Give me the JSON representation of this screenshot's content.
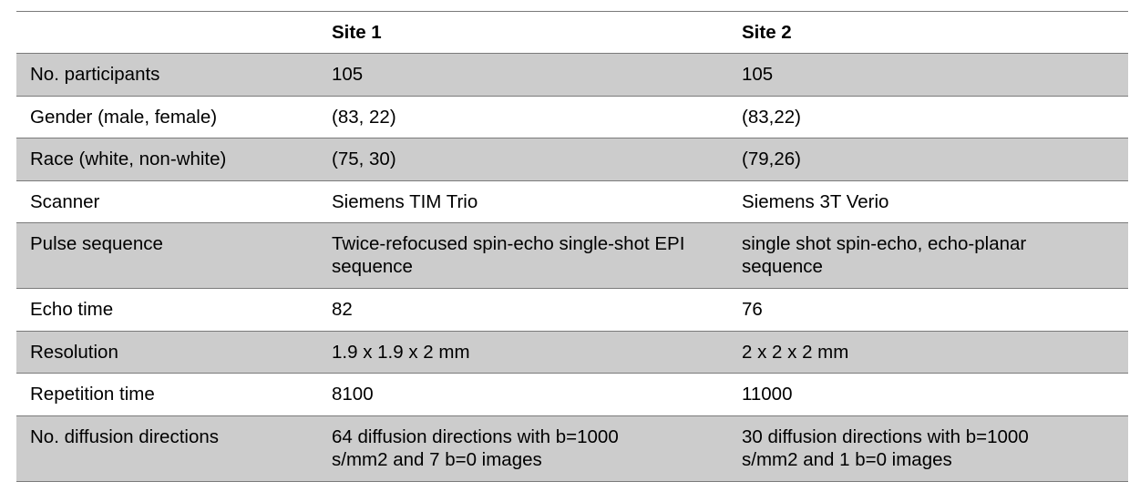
{
  "header": [
    "",
    "Site 1",
    "Site 2"
  ],
  "rows": [
    {
      "label": "No. participants",
      "site1": "105",
      "site2": "105"
    },
    {
      "label": "Gender (male, female)",
      "site1": "(83, 22)",
      "site2": "(83,22)"
    },
    {
      "label": "Race (white, non-white)",
      "site1": "(75, 30)",
      "site2": "(79,26)"
    },
    {
      "label": "Scanner",
      "site1": "Siemens TIM Trio",
      "site2": "Siemens 3T Verio"
    },
    {
      "label": "Pulse sequence",
      "site1": "Twice-refocused spin-echo  single-shot EPI sequence",
      "site2": "single shot spin-echo, echo-planar sequence"
    },
    {
      "label": "Echo time",
      "site1": "82",
      "site2": "76"
    },
    {
      "label": "Resolution",
      "site1": "1.9 x 1.9 x 2 mm",
      "site2": "2 x 2 x 2 mm"
    },
    {
      "label": "Repetition time",
      "site1": "8100",
      "site2": "11000"
    },
    {
      "label": "No. diffusion directions",
      "site1": "64 diffusion directions with b=1000 s/mm2 and 7 b=0 images",
      "site2": "30 diffusion directions with b=1000 s/mm2 and 1 b=0 images"
    }
  ]
}
